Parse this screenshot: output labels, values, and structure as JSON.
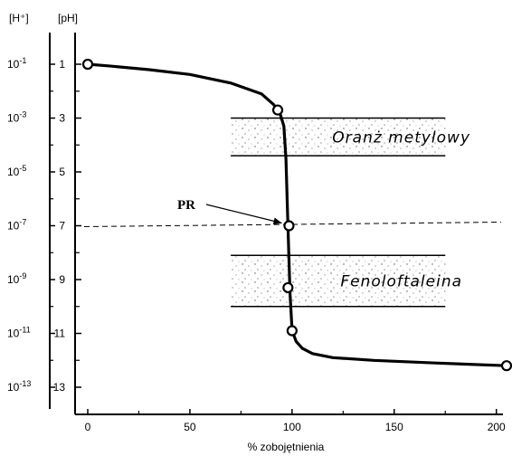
{
  "chart_data": {
    "type": "line",
    "title": "",
    "xlabel": "% zobojętnienia",
    "ylabel_left_unit": "[H⁺]",
    "ylabel_right_unit": "[pH]",
    "xlim": [
      0,
      205
    ],
    "ylim": [
      14,
      0
    ],
    "x_ticks": [
      0,
      50,
      100,
      150,
      200
    ],
    "ph_ticks": [
      1,
      3,
      5,
      7,
      9,
      11,
      13
    ],
    "h_ticks": [
      {
        "base": "10",
        "exp": "-1"
      },
      {
        "base": "10",
        "exp": "-3"
      },
      {
        "base": "10",
        "exp": "-5"
      },
      {
        "base": "10",
        "exp": "-7"
      },
      {
        "base": "10",
        "exp": "-9"
      },
      {
        "base": "10",
        "exp": "-11"
      },
      {
        "base": "10",
        "exp": "-13"
      }
    ],
    "curve": {
      "x": [
        0,
        10,
        30,
        50,
        70,
        85,
        91,
        94,
        96,
        97,
        98,
        99,
        100,
        102,
        105,
        110,
        120,
        140,
        170,
        205
      ],
      "y": [
        1.0,
        1.06,
        1.2,
        1.38,
        1.7,
        2.1,
        2.5,
        2.8,
        3.3,
        4.5,
        7.0,
        9.5,
        10.9,
        11.3,
        11.55,
        11.75,
        11.9,
        12.0,
        12.1,
        12.2
      ]
    },
    "points": [
      {
        "x": 0,
        "y": 1.0
      },
      {
        "x": 93,
        "y": 2.7
      },
      {
        "x": 98.5,
        "y": 7.0
      },
      {
        "x": 98,
        "y": 9.3
      },
      {
        "x": 100,
        "y": 10.9
      },
      {
        "x": 205,
        "y": 12.2
      }
    ],
    "equivalence_line": {
      "y": 7.0,
      "x_from": 0,
      "x_to": 205,
      "style": "dashed"
    },
    "bands": [
      {
        "label": "Oranż metylowy",
        "x_from": 70,
        "x_to": 175,
        "y_from": 3.0,
        "y_to": 4.4
      },
      {
        "label": "Fenoloftaleina",
        "x_from": 70,
        "x_to": 175,
        "y_from": 8.1,
        "y_to": 10.0
      }
    ],
    "annotation": {
      "label": "PR",
      "target_x": 98.5,
      "target_y": 7.0
    },
    "grid": false
  }
}
